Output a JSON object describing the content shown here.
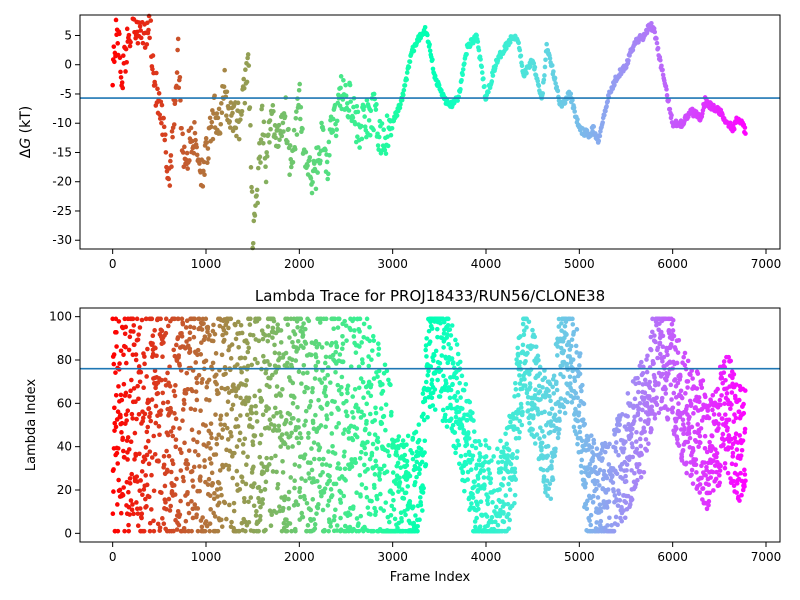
{
  "chart_data": [
    {
      "type": "scatter",
      "title": "",
      "xlabel": "",
      "ylabel": "ΔG (kT)",
      "xlim": [
        -350,
        7150
      ],
      "ylim": [
        -31.5,
        8.5
      ],
      "xticks": [
        0,
        1000,
        2000,
        3000,
        4000,
        5000,
        6000,
        7000
      ],
      "yticks": [
        -30,
        -25,
        -20,
        -15,
        -10,
        -5,
        0,
        5
      ],
      "hline": -5.7,
      "hline_color": "#1f77b4",
      "colormap": "rainbow (reversed along frame index: early frames red, late frames violet)",
      "grid": false,
      "series": [
        {
          "x": [
            0,
            50,
            100,
            150,
            200,
            250,
            300,
            350,
            400,
            450,
            500,
            550,
            600,
            650,
            700,
            750,
            800,
            850,
            900,
            950,
            1000,
            1050,
            1100,
            1150,
            1200,
            1250,
            1300,
            1350,
            1400,
            1450,
            1500,
            1550,
            1600,
            1650,
            1700,
            1750,
            1800,
            1850,
            1900,
            1950,
            2000,
            2050,
            2100,
            2150,
            2200,
            2250,
            2300,
            2350,
            2400,
            2450,
            2500,
            2550,
            2600,
            2650,
            2700,
            2750,
            2800,
            2850,
            2900,
            2950,
            3000,
            3100,
            3200,
            3300,
            3350,
            3400,
            3450,
            3500,
            3600,
            3700,
            3800,
            3900,
            4000,
            4100,
            4200,
            4300,
            4350,
            4400,
            4500,
            4600,
            4650,
            4700,
            4800,
            4900,
            5000,
            5100,
            5150,
            5200,
            5300,
            5400,
            5500,
            5600,
            5700,
            5750,
            5800,
            5900,
            6000,
            6100,
            6200,
            6300,
            6350,
            6400,
            6500,
            6600,
            6650,
            6700,
            6800
          ],
          "y": [
            0,
            6,
            -2,
            3,
            8,
            6,
            8,
            5,
            7,
            -3,
            -8,
            -12,
            -20,
            -10,
            2,
            -14,
            -16,
            -12,
            -14,
            -18,
            -16,
            -12,
            -8,
            -10,
            -4,
            -9,
            -8,
            -10,
            -6,
            2,
            -28,
            -22,
            -10,
            -18,
            -6,
            -14,
            -10,
            -8,
            -16,
            -12,
            -6,
            -15,
            -18,
            -20,
            -16,
            -12,
            -18,
            -10,
            -9,
            -4,
            -7,
            -5,
            -10,
            -11,
            -9,
            -10,
            -8,
            -12,
            -13,
            -12,
            -10,
            -6,
            2,
            5,
            6,
            3,
            -2,
            -4,
            -7,
            -6,
            3,
            5,
            -6,
            0,
            3,
            5,
            4,
            -2,
            1,
            -6,
            3,
            0,
            -7,
            -5,
            -11,
            -12,
            -11,
            -13,
            -6,
            -2,
            0,
            4,
            5,
            7,
            6,
            -2,
            -10,
            -10,
            -8,
            -9,
            -6,
            -7,
            -8,
            -10,
            -11,
            -9,
            -12
          ]
        }
      ]
    },
    {
      "type": "scatter",
      "title": "Lambda Trace for PROJ18433/RUN56/CLONE38",
      "xlabel": "Frame Index",
      "ylabel": "Lambda Index",
      "xlim": [
        -350,
        7150
      ],
      "ylim": [
        -4,
        104
      ],
      "xticks": [
        0,
        1000,
        2000,
        3000,
        4000,
        5000,
        6000,
        7000
      ],
      "yticks": [
        0,
        20,
        40,
        60,
        80,
        100
      ],
      "hline": 76,
      "hline_color": "#1f77b4",
      "colormap": "rainbow (reversed along frame index: early frames red, late frames violet)",
      "grid": false,
      "x_range": [
        0,
        6780
      ],
      "lambda_range": [
        1,
        99
      ],
      "series": [
        {
          "note_points": "dense random-walk trace of lambda index vs frame (~7000 points)",
          "x": [
            0,
            100,
            200,
            300,
            400,
            500,
            600,
            700,
            800,
            900,
            1000,
            1100,
            1200,
            1300,
            1400,
            1500,
            1600,
            1700,
            1800,
            1900,
            2000,
            2100,
            2200,
            2300,
            2400,
            2500,
            2600,
            2700,
            2800,
            2900,
            3000,
            3100,
            3200,
            3300,
            3400,
            3500,
            3600,
            3700,
            3800,
            3900,
            4000,
            4100,
            4200,
            4300,
            4400,
            4500,
            4600,
            4700,
            4800,
            4900,
            5000,
            5100,
            5200,
            5300,
            5400,
            5500,
            5600,
            5700,
            5800,
            5900,
            6000,
            6100,
            6200,
            6300,
            6400,
            6500,
            6600,
            6700
          ],
          "y": [
            50,
            40,
            60,
            45,
            55,
            50,
            48,
            52,
            45,
            55,
            50,
            46,
            54,
            50,
            52,
            48,
            50,
            55,
            45,
            50,
            50,
            48,
            52,
            50,
            55,
            45,
            50,
            52,
            40,
            25,
            15,
            20,
            18,
            25,
            85,
            82,
            75,
            60,
            40,
            20,
            15,
            10,
            20,
            40,
            85,
            70,
            50,
            40,
            80,
            85,
            60,
            20,
            12,
            15,
            25,
            35,
            45,
            55,
            80,
            85,
            75,
            60,
            50,
            45,
            35,
            50,
            55,
            40
          ]
        }
      ]
    }
  ],
  "top_chart": {
    "ylabel_prefix": "Δ",
    "ylabel_g": "G",
    "ylabel_unit": " (kT)"
  }
}
